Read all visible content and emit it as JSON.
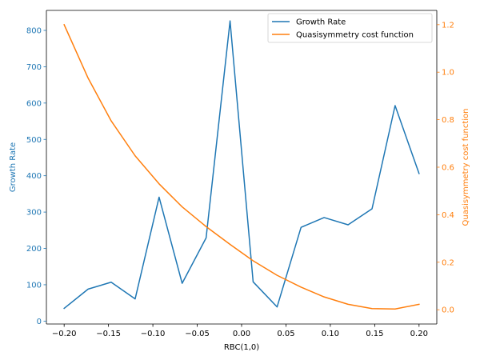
{
  "chart_data": {
    "type": "line",
    "xlabel": "RBC(1,0)",
    "x": [
      -0.2,
      -0.173,
      -0.147,
      -0.12,
      -0.093,
      -0.067,
      -0.04,
      -0.013,
      0.013,
      0.04,
      0.067,
      0.093,
      0.12,
      0.147,
      0.173,
      0.2
    ],
    "xlim": [
      -0.22,
      0.22
    ],
    "xticks": [
      -0.2,
      -0.15,
      -0.1,
      -0.05,
      0.0,
      0.05,
      0.1,
      0.15,
      0.2
    ],
    "xtick_labels": [
      "−0.20",
      "−0.15",
      "−0.10",
      "−0.05",
      "0.00",
      "0.05",
      "0.10",
      "0.15",
      "0.20"
    ],
    "left_axis": {
      "label": "Growth Rate",
      "color": "#1f77b4",
      "ylim": [
        -8,
        855
      ],
      "ticks": [
        0,
        100,
        200,
        300,
        400,
        500,
        600,
        700,
        800
      ],
      "tick_labels": [
        "0",
        "100",
        "200",
        "300",
        "400",
        "500",
        "600",
        "700",
        "800"
      ]
    },
    "right_axis": {
      "label": "Quasisymmetry cost function",
      "color": "#ff7f0e",
      "ylim": [
        -0.06,
        1.26
      ],
      "ticks": [
        0.0,
        0.2,
        0.4,
        0.6,
        0.8,
        1.0,
        1.2
      ],
      "tick_labels": [
        "0.0",
        "0.2",
        "0.4",
        "0.6",
        "0.8",
        "1.0",
        "1.2"
      ]
    },
    "series": [
      {
        "name": "Growth Rate",
        "axis": "left",
        "color": "#1f77b4",
        "values": [
          35,
          88,
          107,
          61,
          341,
          104,
          229,
          826,
          108,
          39,
          258,
          285,
          265,
          309,
          593,
          406
        ]
      },
      {
        "name": "Quasisymmetry cost function",
        "axis": "right",
        "color": "#ff7f0e",
        "values": [
          1.2,
          0.975,
          0.795,
          0.648,
          0.53,
          0.433,
          0.35,
          0.275,
          0.206,
          0.145,
          0.095,
          0.054,
          0.023,
          0.005,
          0.003,
          0.023
        ]
      }
    ],
    "legend": {
      "placement": "top-right",
      "entries": [
        "Growth Rate",
        "Quasisymmetry cost function"
      ]
    },
    "grid": false
  }
}
